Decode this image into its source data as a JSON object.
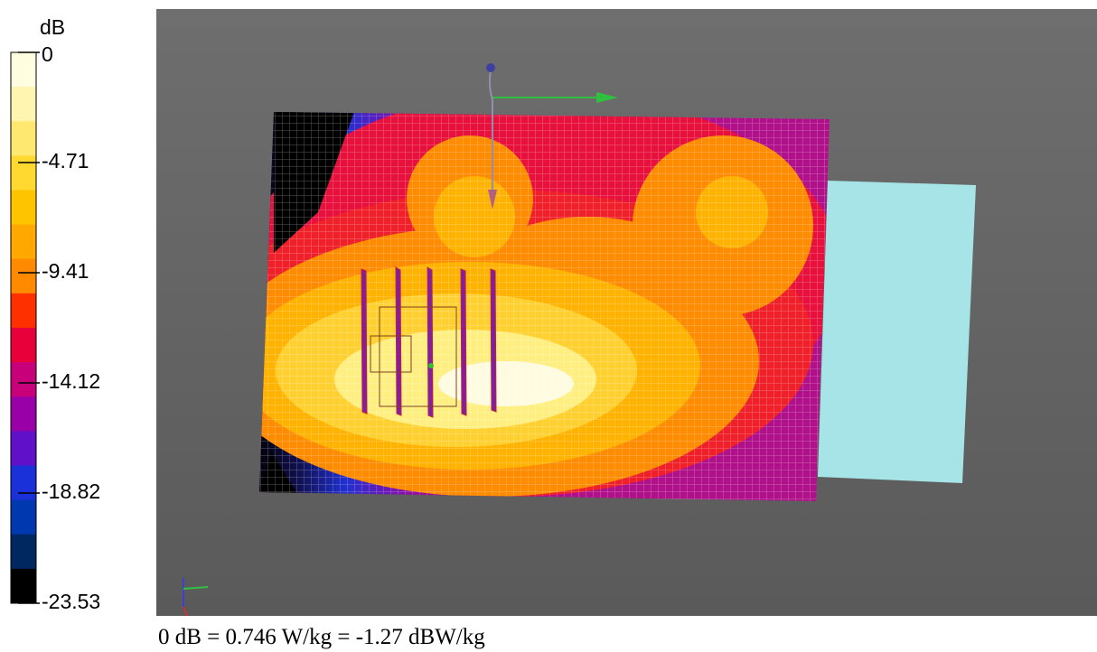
{
  "colorbar": {
    "unit": "dB",
    "ticks": [
      "0",
      "-4.71",
      "-9.41",
      "-14.12",
      "-18.82",
      "-23.53"
    ]
  },
  "caption": "0 dB = 0.746 W/kg = -1.27 dBW/kg"
}
